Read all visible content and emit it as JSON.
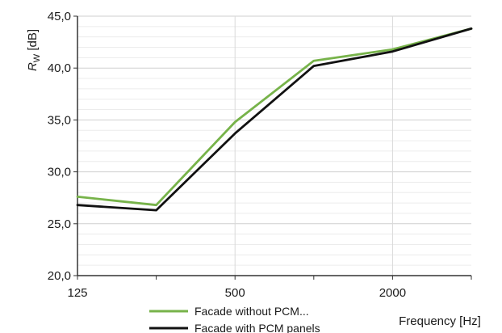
{
  "chart_data": {
    "type": "line",
    "x": [
      125,
      250,
      500,
      1000,
      2000,
      4000
    ],
    "x_tick_labels": [
      "125",
      "500",
      "2000"
    ],
    "x_tick_values": [
      125,
      500,
      2000
    ],
    "x_scale": "log2",
    "xlim": [
      125,
      4000
    ],
    "xlabel": "Frequency [Hz]",
    "ylabel_main": "R",
    "ylabel_sub": "W",
    "ylabel_unit": " [dB]",
    "ylim": [
      20,
      45
    ],
    "y_ticks": [
      20,
      25,
      30,
      35,
      40,
      45
    ],
    "y_tick_labels": [
      "20,0",
      "25,0",
      "30,0",
      "35,0",
      "40,0",
      "45,0"
    ],
    "grid": "horizontal",
    "legend_position": "bottom",
    "series": [
      {
        "name": "Facade without PCM...",
        "color": "#77b34a",
        "values": [
          27.6,
          26.8,
          34.8,
          40.7,
          41.8,
          43.8
        ]
      },
      {
        "name": "Facade with PCM panels",
        "color": "#111111",
        "values": [
          26.8,
          26.3,
          33.7,
          40.2,
          41.6,
          43.8
        ]
      }
    ]
  }
}
